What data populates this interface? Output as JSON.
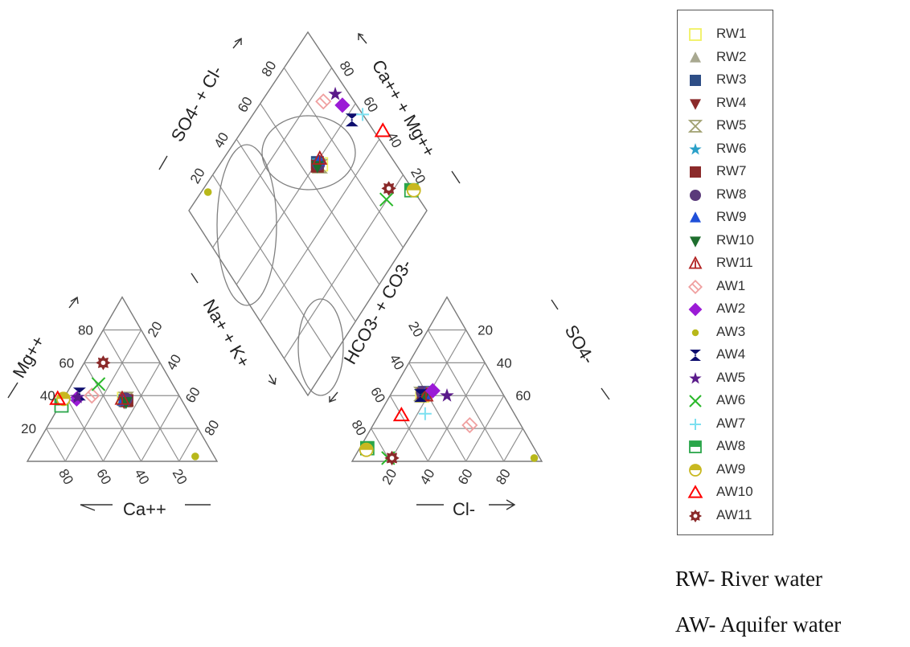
{
  "chart_data": {
    "type": "scatter",
    "subtype": "piper-diagram",
    "panels": {
      "cation_triangle": {
        "axes": {
          "left": {
            "label": "Mg++",
            "ticks": [
              "80",
              "60",
              "40",
              "20"
            ]
          },
          "bottom": {
            "label": "Ca++",
            "ticks": [
              "80",
              "60",
              "40",
              "20"
            ]
          },
          "right": {
            "label": "Na+ + K+",
            "ticks": [
              "20",
              "40",
              "60",
              "80"
            ]
          }
        }
      },
      "anion_triangle": {
        "axes": {
          "left": {
            "label": "HCO3- + CO3-",
            "ticks": [
              "20",
              "40",
              "60",
              "80"
            ]
          },
          "bottom": {
            "label": "Cl-",
            "ticks": [
              "20",
              "40",
              "60",
              "80"
            ]
          },
          "right": {
            "label": "SO4-",
            "ticks": [
              "60",
              "40",
              "20"
            ]
          }
        }
      },
      "diamond": {
        "axes": {
          "upper_left": {
            "label": "SO4- + Cl-",
            "ticks": [
              "80",
              "60",
              "40",
              "20"
            ]
          },
          "upper_right": {
            "label": "Ca++ + Mg++",
            "ticks": [
              "80",
              "60",
              "40",
              "20"
            ]
          }
        }
      }
    },
    "series": [
      {
        "name": "RW1",
        "symbol": "square-open",
        "color": "#f0f060",
        "cation": [
          30,
          38
        ],
        "anion": [
          43,
          40
        ]
      },
      {
        "name": "RW2",
        "symbol": "triangle",
        "color": "#a8a890",
        "cation": [
          30,
          36
        ],
        "anion": [
          42,
          41
        ]
      },
      {
        "name": "RW3",
        "symbol": "square",
        "color": "#2e4e86",
        "cation": [
          30,
          37
        ],
        "anion": [
          41,
          42
        ]
      },
      {
        "name": "RW4",
        "symbol": "triangle-down",
        "color": "#8b2a2a",
        "cation": [
          31,
          36
        ],
        "anion": [
          42,
          42
        ]
      },
      {
        "name": "RW5",
        "symbol": "hourglass-open",
        "color": "#a0a070",
        "cation": [
          29,
          38
        ],
        "anion": [
          43,
          41
        ]
      },
      {
        "name": "RW6",
        "symbol": "star",
        "color": "#2aa0c8",
        "cation": [
          30,
          38
        ],
        "anion": [
          41,
          41
        ]
      },
      {
        "name": "RW7",
        "symbol": "square",
        "color": "#8b2a2a",
        "cation": [
          29,
          37
        ],
        "anion": [
          42,
          41
        ]
      },
      {
        "name": "RW8",
        "symbol": "circle",
        "color": "#5a3a7a",
        "cation": [
          29,
          38
        ],
        "anion": [
          42,
          42
        ]
      },
      {
        "name": "RW9",
        "symbol": "triangle",
        "color": "#1f4fd8",
        "cation": [
          31,
          37
        ],
        "anion": [
          41,
          41
        ]
      },
      {
        "name": "RW10",
        "symbol": "triangle-down",
        "color": "#1e6e2e",
        "cation": [
          30,
          36
        ],
        "anion": [
          42,
          40
        ]
      },
      {
        "name": "RW11",
        "symbol": "triangle-open-dot",
        "color": "#b22222",
        "cation": [
          31,
          38
        ],
        "anion": [
          41,
          40
        ]
      },
      {
        "name": "AW1",
        "symbol": "diamond-open",
        "color": "#f0a0a0",
        "cation": [
          46,
          40
        ],
        "anion": [
          27,
          22
        ]
      },
      {
        "name": "AW2",
        "symbol": "diamond",
        "color": "#9b1bd6",
        "cation": [
          55,
          38
        ],
        "anion": [
          36,
          43
        ]
      },
      {
        "name": "AW3",
        "symbol": "dot",
        "color": "#b8b81a",
        "cation": [
          10,
          3
        ],
        "anion": [
          3,
          2
        ]
      },
      {
        "name": "AW4",
        "symbol": "hourglass",
        "color": "#0d0d6e",
        "cation": [
          52,
          41
        ],
        "anion": [
          44,
          40
        ]
      },
      {
        "name": "AW5",
        "symbol": "star",
        "color": "#5a1a8a",
        "cation": [
          54,
          39
        ],
        "anion": [
          30,
          40
        ]
      },
      {
        "name": "AW6",
        "symbol": "x",
        "color": "#2ab82a",
        "cation": [
          39,
          47
        ],
        "anion": [
          80,
          2
        ]
      },
      {
        "name": "AW7",
        "symbol": "plus",
        "color": "#7de0f0",
        "cation": [
          61,
          38
        ],
        "anion": [
          47,
          29
        ]
      },
      {
        "name": "AW8",
        "symbol": "square-half",
        "color": "#2aa64a",
        "cation": [
          65,
          34
        ],
        "anion": [
          88,
          8
        ]
      },
      {
        "name": "AW9",
        "symbol": "circle-half",
        "color": "#c8b820",
        "cation": [
          62,
          38
        ],
        "anion": [
          89,
          7
        ]
      },
      {
        "name": "AW10",
        "symbol": "triangle-open",
        "color": "#ff0000",
        "cation": [
          65,
          38
        ],
        "anion": [
          60,
          28
        ]
      },
      {
        "name": "AW11",
        "symbol": "gear",
        "color": "#8b2a2a",
        "cation": [
          30,
          60
        ],
        "anion": [
          78,
          2
        ]
      }
    ],
    "legend": {
      "position": "right"
    }
  },
  "notes": {
    "rw": "RW- River water",
    "aw": "AW- Aquifer water"
  },
  "colors": {
    "grid": "#8f8f8f",
    "ellipse": "#808080"
  }
}
